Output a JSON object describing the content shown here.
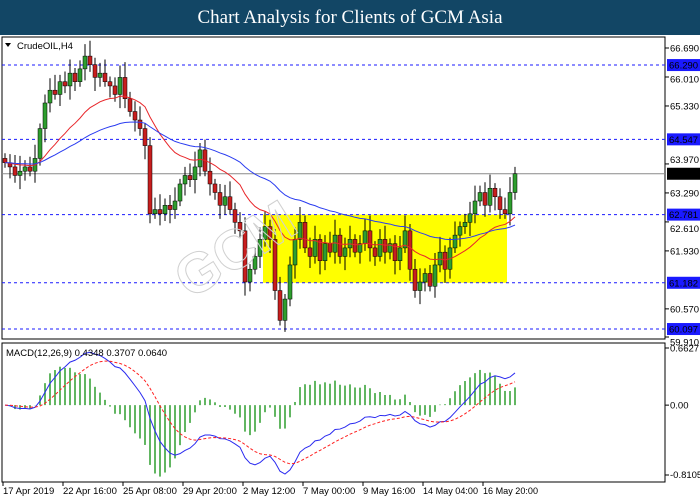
{
  "header": {
    "title": "Chart Analysis for Clients of GCM Asia"
  },
  "chart_data": {
    "type": "candlestick",
    "symbol_label": "CrudeOIL,H4",
    "price_ticks": [
      "66.690",
      "66.010",
      "65.330",
      "63.970",
      "63.290",
      "62.610",
      "61.930",
      "60.570",
      "59.910"
    ],
    "price_range": [
      59.91,
      66.69
    ],
    "current_price": {
      "value": 63.74,
      "label": "63.740"
    },
    "levels": [
      {
        "value": 66.29,
        "label": "66.290"
      },
      {
        "value": 64.547,
        "label": "64.547"
      },
      {
        "value": 62.781,
        "label": "62.781"
      },
      {
        "value": 61.182,
        "label": "61.182"
      },
      {
        "value": 60.097,
        "label": "60.097"
      }
    ],
    "range_box": {
      "top": 62.781,
      "bottom": 61.182,
      "from_index": 52,
      "to_index": 100,
      "color": "#ffff00"
    },
    "time_labels": [
      "17 Apr 2019",
      "22 Apr 16:00",
      "25 Apr 08:00",
      "29 Apr 20:00",
      "2 May 12:00",
      "7 May 00:00",
      "9 May 16:00",
      "14 May 04:00",
      "16 May 20:00"
    ],
    "closes": [
      64.0,
      63.9,
      63.7,
      63.8,
      63.9,
      63.8,
      64.1,
      64.8,
      65.4,
      65.7,
      65.6,
      65.9,
      65.8,
      66.1,
      65.9,
      66.2,
      66.5,
      66.3,
      66.0,
      66.1,
      65.9,
      65.8,
      65.6,
      66.0,
      65.5,
      65.2,
      65.0,
      64.8,
      64.4,
      62.8,
      62.9,
      62.8,
      63.0,
      62.9,
      63.1,
      63.5,
      63.7,
      63.6,
      63.9,
      64.3,
      63.8,
      63.5,
      63.3,
      63.0,
      63.2,
      62.9,
      62.6,
      62.4,
      61.2,
      61.5,
      61.8,
      62.2,
      62.5,
      62.2,
      61.0,
      60.3,
      60.8,
      61.6,
      62.2,
      62.6,
      62.0,
      61.8,
      62.2,
      61.7,
      62.1,
      61.9,
      62.3,
      61.8,
      62.0,
      62.2,
      61.9,
      62.1,
      62.4,
      62.0,
      61.8,
      62.2,
      61.9,
      62.1,
      61.7,
      62.0,
      62.4,
      61.5,
      61.0,
      61.2,
      61.4,
      61.1,
      61.6,
      61.9,
      61.5,
      62.0,
      62.3,
      62.5,
      62.6,
      62.8,
      63.1,
      63.3,
      63.0,
      63.4,
      63.2,
      62.9,
      62.8,
      63.3,
      63.74
    ],
    "moving_averages": [
      {
        "period": 20,
        "color": "#e8262a"
      },
      {
        "period": 50,
        "color": "#2a3cf0"
      }
    ],
    "macd": {
      "label": "MACD(12,26,9) 0.4348 0.3707 0.0640",
      "ticks": [
        "0.6627",
        "0.00",
        "-0.8105"
      ],
      "range": [
        -0.8105,
        0.6627
      ],
      "colors": {
        "macd": "#2a2af0",
        "signal": "#ff2020",
        "histogram": "#2e9e2e"
      }
    },
    "colors": {
      "bull": "#2e9e2e",
      "bear": "#c81e1e",
      "level": "#1a1aff"
    }
  }
}
